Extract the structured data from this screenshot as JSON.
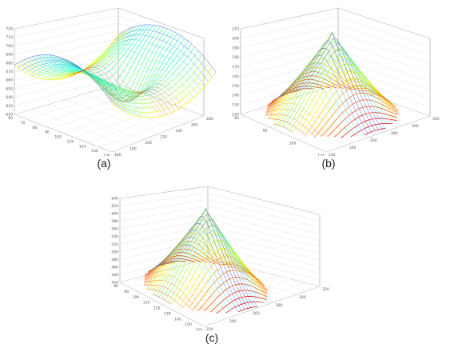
{
  "chart_data": [
    {
      "type": "surface",
      "panel_label": "(a)",
      "z_ticks": [
        "720",
        "710",
        "700",
        "690",
        "680",
        "670",
        "660",
        "650",
        "640",
        "630",
        "620"
      ],
      "x_ticks": [
        "60",
        "70",
        "80",
        "90",
        "100",
        "110",
        "120",
        "130",
        "140"
      ],
      "y_ticks": [
        "160",
        "180",
        "200",
        "220",
        "240",
        "260",
        "280"
      ],
      "shape": "saddle",
      "colormap": "jet",
      "grid": true
    },
    {
      "type": "surface",
      "panel_label": "(b)",
      "z_ticks": [
        "210",
        "200",
        "190",
        "180",
        "170",
        "160",
        "150",
        "140",
        "130",
        "120"
      ],
      "x_ticks": [
        "60",
        "80",
        "100",
        "120"
      ],
      "y_ticks": [
        "220",
        "240",
        "260",
        "280",
        "300",
        "320"
      ],
      "shape": "peak",
      "colormap": "jet",
      "grid": true
    },
    {
      "type": "surface",
      "panel_label": "(c)",
      "z_ticks": [
        "640",
        "620",
        "600",
        "580",
        "560",
        "540",
        "520",
        "500",
        "480",
        "460",
        "440",
        "420"
      ],
      "x_ticks": [
        "80",
        "90",
        "100",
        "110",
        "120",
        "130",
        "140",
        "150",
        "160"
      ],
      "y_ticks": [
        "220",
        "240",
        "260",
        "280",
        "300",
        "320"
      ],
      "shape": "peak",
      "colormap": "jet",
      "grid": true
    }
  ],
  "captions": {
    "a": "(a)",
    "b": "(b)",
    "c": "(c)"
  }
}
